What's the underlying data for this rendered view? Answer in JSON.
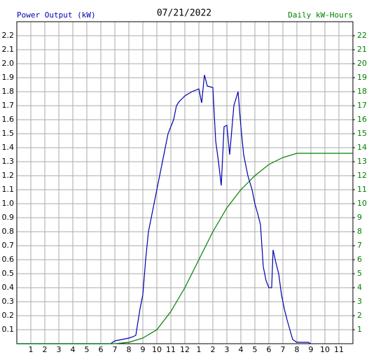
{
  "chart_data": {
    "type": "line",
    "title": "07/21/2022",
    "ylabel": "Power Output (kW)",
    "y2label": "Daily kW-Hours",
    "xlim": [
      0,
      24
    ],
    "xticks": [
      1,
      2,
      3,
      4,
      5,
      6,
      7,
      8,
      9,
      10,
      11,
      12,
      {
        "value": 13,
        "label": "1"
      },
      {
        "value": 14,
        "label": "2"
      },
      {
        "value": 15,
        "label": "3"
      },
      {
        "value": 16,
        "label": "4"
      },
      {
        "value": 17,
        "label": "5"
      },
      {
        "value": 18,
        "label": "6"
      },
      {
        "value": 19,
        "label": "7"
      },
      {
        "value": 20,
        "label": "8"
      },
      {
        "value": 21,
        "label": "9"
      },
      {
        "value": 22,
        "label": "10"
      },
      {
        "value": 23,
        "label": "11"
      }
    ],
    "ylim": [
      0,
      2.3
    ],
    "yticks": [
      0.1,
      0.2,
      0.3,
      0.4,
      0.5,
      0.6,
      0.7,
      0.8,
      0.9,
      {
        "value": 1,
        "label": "1.0"
      },
      1.1,
      1.2,
      1.3,
      1.4,
      1.5,
      1.6,
      1.7,
      1.8,
      1.9,
      {
        "value": 2,
        "label": "2.0"
      },
      2.1,
      2.2
    ],
    "y2lim": [
      0,
      23
    ],
    "y2ticks": [
      1,
      2,
      3,
      4,
      5,
      6,
      7,
      8,
      9,
      10,
      11,
      12,
      13,
      14,
      15,
      16,
      17,
      18,
      19,
      20,
      21,
      22
    ],
    "grid": true,
    "series": [
      {
        "name": "Power Output (kW)",
        "color": "#0000b0",
        "x": [
          0,
          6.7,
          7,
          7.5,
          8,
          8.3,
          8.5,
          8.8,
          9,
          9.2,
          9.4,
          9.6,
          9.8,
          10,
          10.2,
          10.4,
          10.6,
          10.8,
          11,
          11.2,
          11.4,
          11.6,
          11.8,
          12,
          12.5,
          13,
          13.2,
          13.4,
          13.6,
          14,
          14.2,
          14.4,
          14.6,
          14.8,
          15,
          15.2,
          15.5,
          15.8,
          16,
          16.2,
          16.5,
          16.8,
          17,
          17.2,
          17.4,
          17.6,
          17.8,
          18,
          18.2,
          18.3,
          18.5,
          18.7,
          18.9,
          19.1,
          19.3,
          19.5,
          19.7,
          20,
          20.8,
          21
        ],
        "values": [
          0,
          0,
          0.02,
          0.03,
          0.04,
          0.05,
          0.06,
          0.25,
          0.35,
          0.6,
          0.8,
          0.9,
          1.0,
          1.1,
          1.2,
          1.3,
          1.4,
          1.5,
          1.55,
          1.6,
          1.7,
          1.73,
          1.75,
          1.77,
          1.8,
          1.82,
          1.72,
          1.92,
          1.84,
          1.83,
          1.45,
          1.3,
          1.13,
          1.55,
          1.56,
          1.35,
          1.7,
          1.8,
          1.55,
          1.35,
          1.2,
          1.1,
          1.0,
          0.93,
          0.85,
          0.55,
          0.45,
          0.4,
          0.4,
          0.67,
          0.58,
          0.5,
          0.35,
          0.25,
          0.17,
          0.1,
          0.03,
          0.01,
          0.01,
          0
        ]
      },
      {
        "name": "Daily kW-Hours",
        "color": "#008000",
        "axis": "y2",
        "x": [
          0,
          7,
          8,
          9,
          10,
          11,
          12,
          13,
          14,
          15,
          16,
          17,
          18,
          19,
          20,
          24
        ],
        "values": [
          0,
          0,
          0.1,
          0.4,
          1.0,
          2.3,
          4.0,
          6.0,
          8.0,
          9.7,
          11.0,
          12.0,
          12.8,
          13.3,
          13.6,
          13.6
        ]
      }
    ]
  }
}
